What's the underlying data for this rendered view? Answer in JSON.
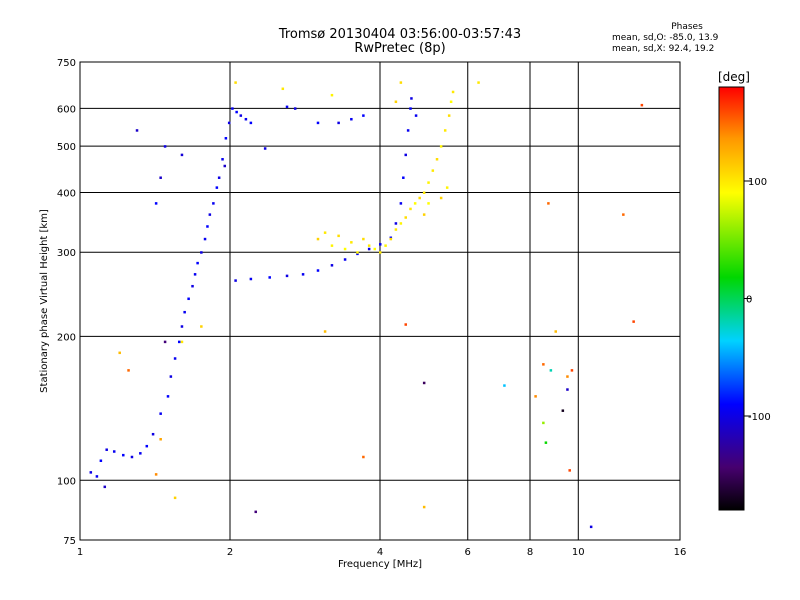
{
  "header": {
    "title_line1": "Tromsø 20130404 03:56:00-03:57:43",
    "title_line2": "RwPretec (8p)"
  },
  "phases_box": {
    "label": "Phases",
    "line_o": "mean, sd,O: -85.0, 13.9",
    "line_x": "mean, sd,X:  92.4, 19.2"
  },
  "colorbar": {
    "unit_label": "[deg]",
    "tick_labels": [
      "100",
      "0",
      "-100"
    ],
    "ticks": [
      100,
      0,
      -100
    ],
    "range": [
      -180,
      180
    ],
    "colormap": "rainbow (black-purple-blue-cyan-green-yellow-orange-red)"
  },
  "chart_data": {
    "type": "scatter",
    "xlabel": "Frequency [MHz]",
    "ylabel": "Stationary phase Virtual Height [km]",
    "xscale": "log",
    "yscale": "log",
    "xlim": [
      1,
      16
    ],
    "ylim": [
      75,
      750
    ],
    "xticks": [
      1,
      2,
      4,
      6,
      8,
      10,
      16
    ],
    "xtick_labels": [
      "1",
      "2",
      "4",
      "6",
      "8",
      "10",
      "16"
    ],
    "yticks": [
      75,
      100,
      200,
      300,
      400,
      500,
      600,
      750
    ],
    "ytick_labels": [
      "75",
      "100",
      "200",
      "300",
      "400",
      "500",
      "600",
      "750"
    ],
    "grid": true,
    "color_encodes": "phase [deg]",
    "series": [
      {
        "name": "O",
        "points": [
          [
            1.05,
            104,
            -100
          ],
          [
            1.08,
            102,
            -95
          ],
          [
            1.1,
            110,
            -90
          ],
          [
            1.13,
            116,
            -100
          ],
          [
            1.17,
            115,
            -95
          ],
          [
            1.22,
            113,
            -90
          ],
          [
            1.27,
            112,
            -100
          ],
          [
            1.32,
            114,
            -95
          ],
          [
            1.36,
            118,
            -90
          ],
          [
            1.4,
            125,
            -100
          ],
          [
            1.45,
            138,
            -95
          ],
          [
            1.5,
            150,
            -90
          ],
          [
            1.52,
            165,
            -100
          ],
          [
            1.55,
            180,
            -95
          ],
          [
            1.58,
            195,
            -90
          ],
          [
            1.6,
            210,
            -100
          ],
          [
            1.62,
            225,
            -95
          ],
          [
            1.65,
            240,
            -90
          ],
          [
            1.68,
            255,
            -100
          ],
          [
            1.7,
            270,
            -95
          ],
          [
            1.72,
            285,
            -90
          ],
          [
            1.75,
            300,
            -100
          ],
          [
            1.78,
            320,
            -95
          ],
          [
            1.8,
            340,
            -90
          ],
          [
            1.82,
            360,
            -100
          ],
          [
            1.85,
            380,
            -95
          ],
          [
            1.88,
            410,
            -90
          ],
          [
            1.9,
            430,
            -100
          ],
          [
            1.93,
            470,
            -95
          ],
          [
            1.96,
            520,
            -90
          ],
          [
            1.99,
            560,
            -100
          ],
          [
            2.02,
            600,
            -95
          ],
          [
            2.06,
            590,
            -90
          ],
          [
            2.1,
            580,
            -100
          ],
          [
            2.15,
            570,
            -95
          ],
          [
            2.2,
            560,
            -90
          ],
          [
            2.35,
            495,
            -100
          ],
          [
            2.6,
            605,
            -95
          ],
          [
            3.0,
            560,
            -90
          ],
          [
            3.3,
            560,
            -100
          ],
          [
            3.5,
            570,
            -95
          ],
          [
            3.7,
            580,
            -90
          ],
          [
            2.05,
            262,
            -100
          ],
          [
            2.2,
            264,
            -95
          ],
          [
            2.4,
            266,
            -90
          ],
          [
            2.6,
            268,
            -100
          ],
          [
            2.8,
            270,
            -95
          ],
          [
            3.0,
            275,
            -90
          ],
          [
            3.2,
            282,
            -100
          ],
          [
            3.4,
            290,
            -95
          ],
          [
            3.6,
            298,
            -90
          ],
          [
            3.8,
            305,
            -100
          ],
          [
            4.0,
            312,
            -95
          ],
          [
            4.2,
            322,
            -90
          ],
          [
            4.3,
            345,
            -100
          ],
          [
            4.4,
            380,
            -95
          ],
          [
            4.45,
            430,
            -90
          ],
          [
            4.5,
            480,
            -100
          ],
          [
            4.55,
            540,
            -95
          ],
          [
            4.6,
            600,
            -90
          ],
          [
            4.62,
            630,
            -100
          ],
          [
            4.72,
            580,
            -95
          ],
          [
            1.3,
            540,
            -110
          ],
          [
            1.6,
            480,
            -105
          ],
          [
            1.95,
            455,
            -110
          ],
          [
            2.7,
            600,
            -100
          ],
          [
            1.45,
            430,
            -110
          ],
          [
            1.48,
            500,
            -100
          ],
          [
            1.42,
            380,
            -90
          ]
        ]
      },
      {
        "name": "X",
        "points": [
          [
            3.0,
            320,
            110
          ],
          [
            3.1,
            330,
            100
          ],
          [
            3.2,
            310,
            95
          ],
          [
            3.3,
            325,
            105
          ],
          [
            3.4,
            305,
            90
          ],
          [
            3.5,
            315,
            100
          ],
          [
            3.6,
            300,
            95
          ],
          [
            3.7,
            320,
            105
          ],
          [
            3.8,
            310,
            100
          ],
          [
            3.9,
            305,
            90
          ],
          [
            4.0,
            300,
            100
          ],
          [
            4.1,
            310,
            95
          ],
          [
            4.2,
            320,
            105
          ],
          [
            4.3,
            335,
            100
          ],
          [
            4.4,
            345,
            95
          ],
          [
            4.5,
            355,
            105
          ],
          [
            4.6,
            370,
            100
          ],
          [
            4.7,
            380,
            90
          ],
          [
            4.8,
            390,
            105
          ],
          [
            4.9,
            400,
            100
          ],
          [
            5.0,
            420,
            95
          ],
          [
            5.1,
            445,
            100
          ],
          [
            5.2,
            470,
            105
          ],
          [
            5.3,
            500,
            95
          ],
          [
            5.4,
            540,
            100
          ],
          [
            5.5,
            580,
            105
          ],
          [
            5.55,
            620,
            90
          ],
          [
            5.6,
            650,
            100
          ],
          [
            5.3,
            390,
            110
          ],
          [
            5.45,
            410,
            95
          ],
          [
            4.9,
            360,
            110
          ],
          [
            5.0,
            380,
            90
          ],
          [
            1.75,
            210,
            110
          ],
          [
            1.6,
            195,
            100
          ],
          [
            6.3,
            680,
            100
          ],
          [
            4.3,
            620,
            110
          ],
          [
            2.05,
            680,
            105
          ],
          [
            2.55,
            660,
            100
          ],
          [
            3.2,
            640,
            95
          ],
          [
            4.4,
            680,
            105
          ]
        ]
      },
      {
        "name": "noise",
        "points": [
          [
            8.2,
            150,
            140
          ],
          [
            8.5,
            175,
            150
          ],
          [
            8.5,
            132,
            60
          ],
          [
            8.6,
            120,
            20
          ],
          [
            8.8,
            170,
            -20
          ],
          [
            9.3,
            140,
            -170
          ],
          [
            9.5,
            165,
            140
          ],
          [
            9.5,
            155,
            -110
          ],
          [
            9.7,
            170,
            160
          ],
          [
            9.6,
            105,
            160
          ],
          [
            8.7,
            380,
            150
          ],
          [
            9.0,
            205,
            120
          ],
          [
            10.6,
            80,
            -100
          ],
          [
            12.3,
            360,
            150
          ],
          [
            12.9,
            215,
            160
          ],
          [
            13.4,
            610,
            160
          ],
          [
            7.1,
            158,
            -40
          ],
          [
            4.9,
            88,
            120
          ],
          [
            4.9,
            160,
            -150
          ],
          [
            4.5,
            212,
            160
          ],
          [
            3.7,
            112,
            150
          ],
          [
            3.1,
            205,
            120
          ],
          [
            2.25,
            86,
            -140
          ],
          [
            1.55,
            92,
            110
          ],
          [
            1.42,
            103,
            140
          ],
          [
            1.25,
            170,
            150
          ],
          [
            1.2,
            185,
            120
          ],
          [
            1.48,
            195,
            -140
          ],
          [
            1.12,
            97,
            -110
          ],
          [
            1.45,
            122,
            130
          ]
        ]
      }
    ]
  }
}
